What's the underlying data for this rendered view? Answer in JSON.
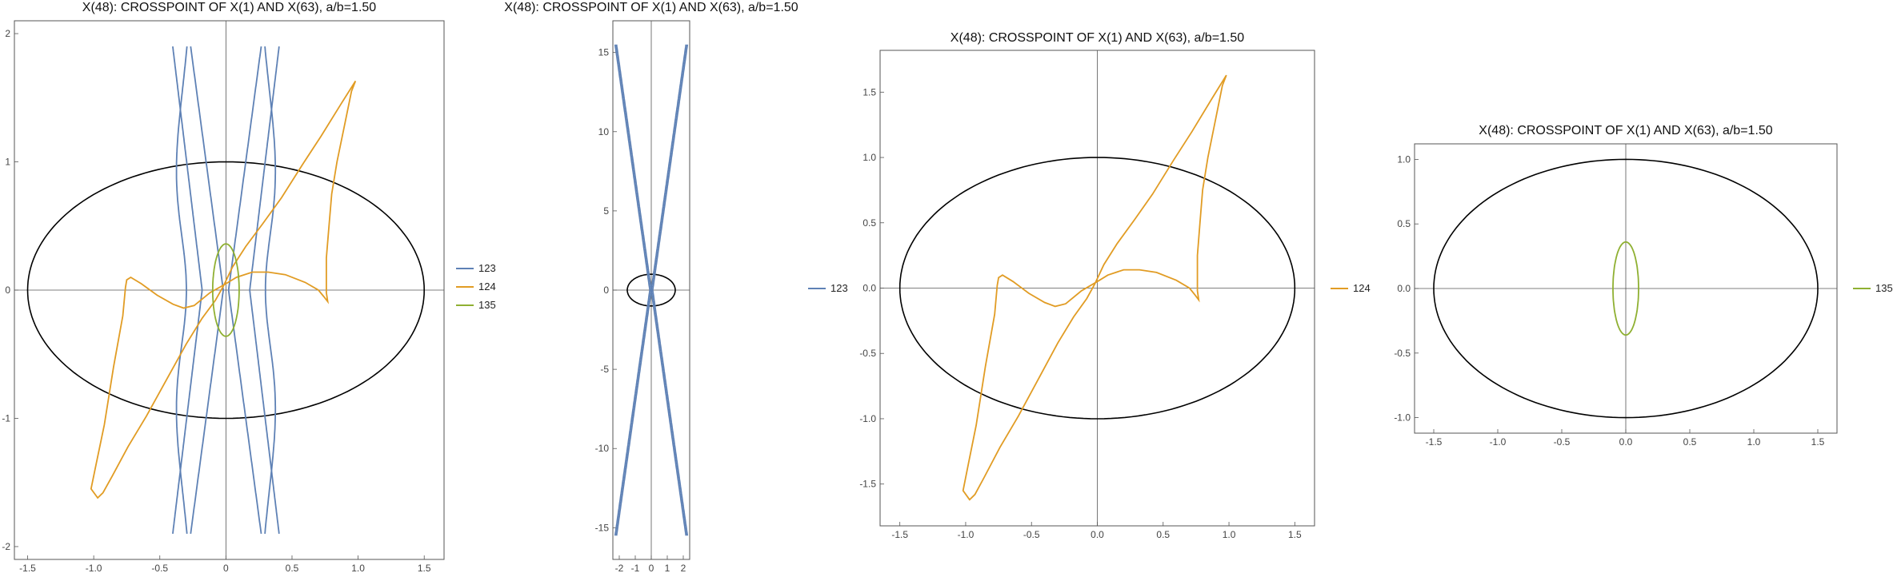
{
  "colors": {
    "s123": "#5e81b5",
    "s124": "#e19c24",
    "s135": "#8fb032",
    "ellipse": "#000000",
    "axis": "#555555",
    "frame": "#555555"
  },
  "chart_data": [
    {
      "type": "line",
      "title": "X(48): CROSSPOINT OF X(1) AND X(63), a/b=1.50",
      "xlim": [
        -1.6,
        1.65
      ],
      "ylim": [
        -2.1,
        2.1
      ],
      "xticks": [
        "-1.5",
        "-1.0",
        "-0.5",
        "0",
        "0.5",
        "1.0",
        "1.5"
      ],
      "xtick_values": [
        -1.5,
        -1.0,
        -0.5,
        0,
        0.5,
        1.0,
        1.5
      ],
      "yticks": [
        "-2",
        "-1",
        "0",
        "1",
        "2"
      ],
      "ytick_values": [
        -2,
        -1,
        0,
        1,
        2
      ],
      "ellipse": {
        "a": 1.5,
        "b": 1.0
      },
      "legend": [
        "123",
        "124",
        "135"
      ],
      "series": [
        {
          "name": "123",
          "color": "s123"
        },
        {
          "name": "124",
          "color": "s124"
        },
        {
          "name": "135",
          "color": "s135"
        }
      ]
    },
    {
      "type": "line",
      "title": "X(48): CROSSPOINT OF X(1) AND X(63), a/b=1.50",
      "xlim": [
        -2.4,
        2.4
      ],
      "ylim": [
        -17,
        17
      ],
      "xticks": [
        "-2",
        "-1",
        "0",
        "1",
        "2"
      ],
      "xtick_values": [
        -2,
        -1,
        0,
        1,
        2
      ],
      "yticks": [
        "-15",
        "-10",
        "-5",
        "0",
        "5",
        "10",
        "15"
      ],
      "ytick_values": [
        -15,
        -10,
        -5,
        0,
        5,
        10,
        15
      ],
      "ellipse": {
        "a": 1.5,
        "b": 1.0
      },
      "legend": [
        "123"
      ],
      "series": [
        {
          "name": "123",
          "color": "s123"
        }
      ]
    },
    {
      "type": "line",
      "title": "X(48): CROSSPOINT OF X(1) AND X(63), a/b=1.50",
      "xlim": [
        -1.65,
        1.65
      ],
      "ylim": [
        -1.82,
        1.82
      ],
      "xticks": [
        "-1.5",
        "-1.0",
        "-0.5",
        "0.0",
        "0.5",
        "1.0",
        "1.5"
      ],
      "xtick_values": [
        -1.5,
        -1.0,
        -0.5,
        0,
        0.5,
        1.0,
        1.5
      ],
      "yticks": [
        "-1.5",
        "-1.0",
        "-0.5",
        "0.0",
        "0.5",
        "1.0",
        "1.5"
      ],
      "ytick_values": [
        -1.5,
        -1.0,
        -0.5,
        0,
        0.5,
        1.0,
        1.5
      ],
      "ellipse": {
        "a": 1.5,
        "b": 1.0
      },
      "legend": [
        "124"
      ],
      "series": [
        {
          "name": "124",
          "color": "s124"
        }
      ]
    },
    {
      "type": "line",
      "title": "X(48): CROSSPOINT OF X(1) AND X(63), a/b=1.50",
      "xlim": [
        -1.65,
        1.65
      ],
      "ylim": [
        -1.12,
        1.12
      ],
      "xticks": [
        "-1.5",
        "-1.0",
        "-0.5",
        "0.0",
        "0.5",
        "1.0",
        "1.5"
      ],
      "xtick_values": [
        -1.5,
        -1.0,
        -0.5,
        0,
        0.5,
        1.0,
        1.5
      ],
      "yticks": [
        "-1.0",
        "-0.5",
        "0.0",
        "0.5",
        "1.0"
      ],
      "ytick_values": [
        -1.0,
        -0.5,
        0,
        0.5,
        1.0
      ],
      "ellipse": {
        "a": 1.5,
        "b": 1.0
      },
      "legend": [
        "135"
      ],
      "series": [
        {
          "name": "135",
          "color": "s135"
        }
      ]
    }
  ]
}
